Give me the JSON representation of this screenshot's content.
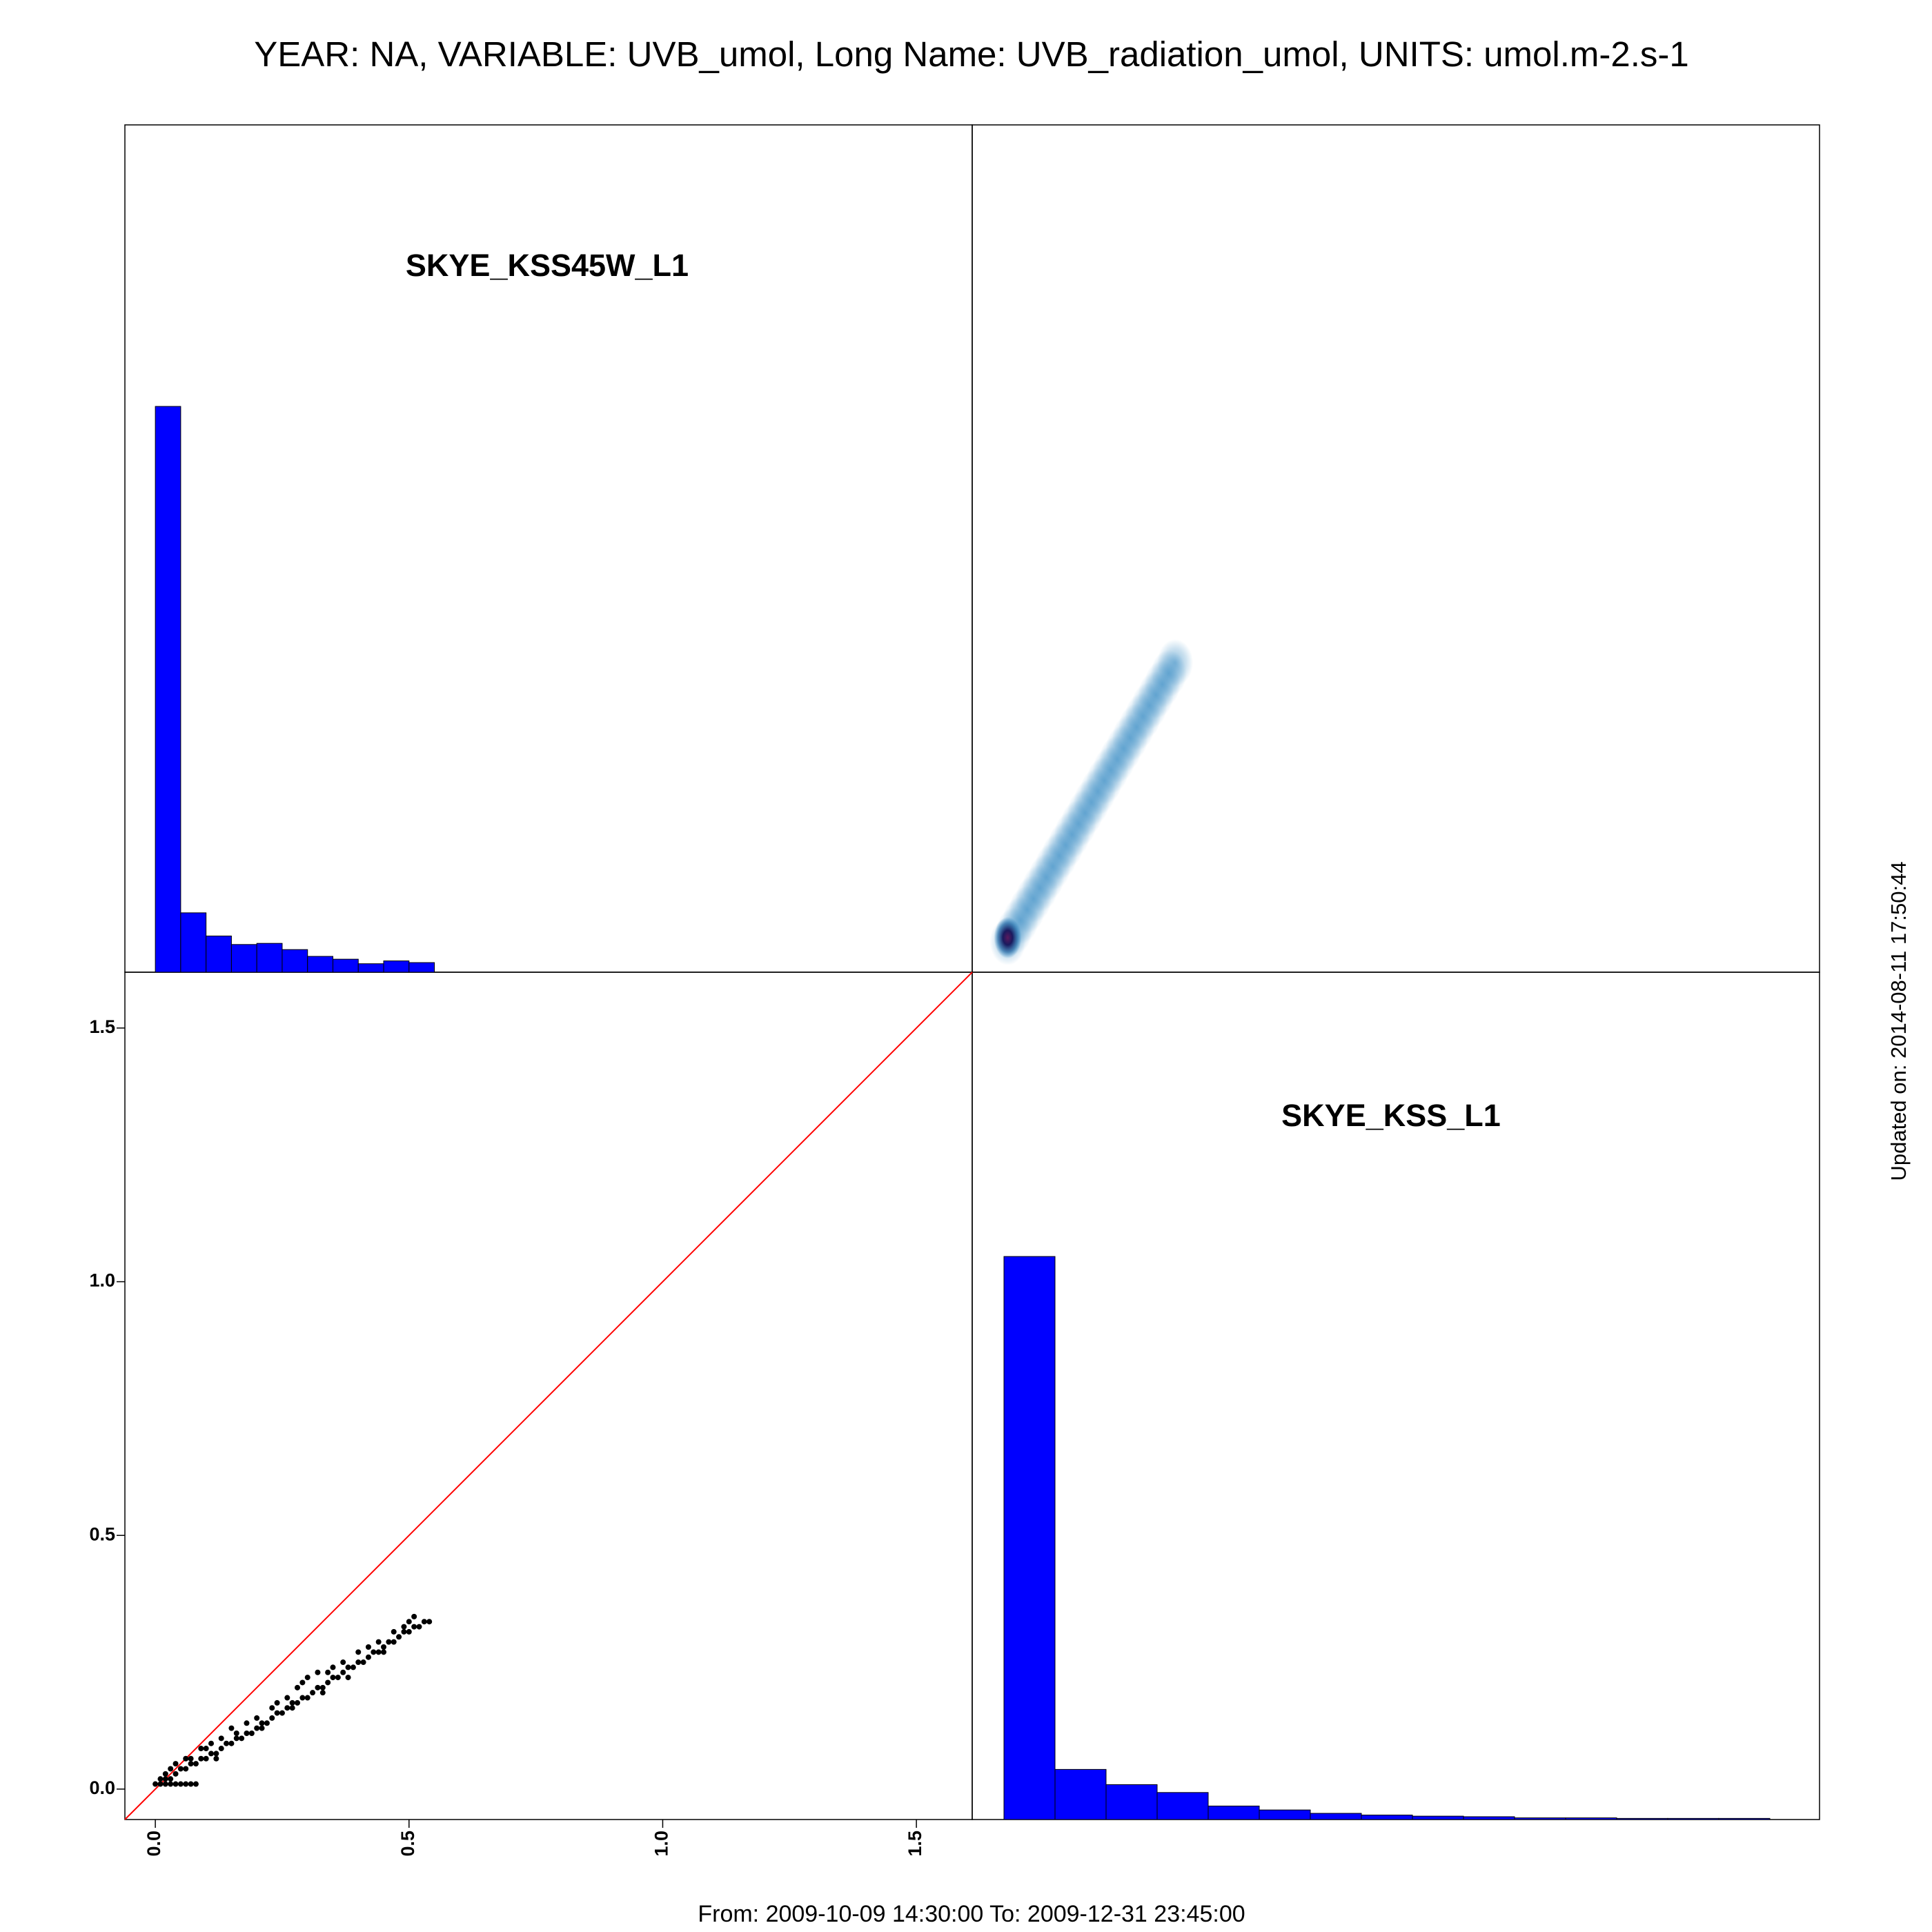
{
  "title": "YEAR: NA, VARIABLE: UVB_umol, Long Name: UVB_radiation_umol, UNITS: umol.m-2.s-1",
  "footer": "From: 2009-10-09 14:30:00 To: 2009-12-31 23:45:00",
  "updated": "Updated on: 2014-08-11 17:50:44",
  "colors": {
    "histogram_fill": "#0000ff",
    "points": "#000000",
    "identity_line": "#ff0000",
    "density_high": "#1a1a5e",
    "density_mid": "#2e86c1"
  },
  "chart_data": [
    {
      "type": "bar",
      "panel": "top-left",
      "label": "SKYE_KSS45W_L1",
      "bin_edges": [
        0.0,
        0.05,
        0.1,
        0.15,
        0.2,
        0.25,
        0.3,
        0.35,
        0.4,
        0.45,
        0.5,
        0.55
      ],
      "values": [
        1.0,
        0.105,
        0.064,
        0.049,
        0.051,
        0.04,
        0.028,
        0.023,
        0.015,
        0.02,
        0.017
      ]
    },
    {
      "type": "heatmap",
      "panel": "top-right",
      "description_of_content": "density",
      "x_range": [
        0.0,
        0.55
      ],
      "y_range": [
        0.0,
        0.34
      ],
      "peak": [
        0.0,
        0.01
      ]
    },
    {
      "type": "scatter",
      "panel": "bottom-left",
      "xlim": [
        -0.06,
        1.61
      ],
      "ylim": [
        -0.06,
        1.61
      ],
      "x_ticks": [
        "0.0",
        "0.5",
        "1.0",
        "1.5"
      ],
      "y_ticks": [
        "0.0",
        "0.5",
        "1.0",
        "1.5"
      ],
      "reference_line": "y = x",
      "points": [
        [
          0.0,
          0.01
        ],
        [
          0.01,
          0.01
        ],
        [
          0.02,
          0.01
        ],
        [
          0.03,
          0.01
        ],
        [
          0.04,
          0.01
        ],
        [
          0.05,
          0.01
        ],
        [
          0.06,
          0.01
        ],
        [
          0.07,
          0.01
        ],
        [
          0.08,
          0.01
        ],
        [
          0.01,
          0.02
        ],
        [
          0.02,
          0.03
        ],
        [
          0.03,
          0.02
        ],
        [
          0.04,
          0.03
        ],
        [
          0.05,
          0.04
        ],
        [
          0.06,
          0.04
        ],
        [
          0.07,
          0.05
        ],
        [
          0.08,
          0.05
        ],
        [
          0.09,
          0.06
        ],
        [
          0.1,
          0.06
        ],
        [
          0.11,
          0.07
        ],
        [
          0.12,
          0.07
        ],
        [
          0.13,
          0.08
        ],
        [
          0.14,
          0.09
        ],
        [
          0.15,
          0.09
        ],
        [
          0.16,
          0.1
        ],
        [
          0.17,
          0.1
        ],
        [
          0.18,
          0.11
        ],
        [
          0.19,
          0.11
        ],
        [
          0.2,
          0.12
        ],
        [
          0.21,
          0.13
        ],
        [
          0.22,
          0.13
        ],
        [
          0.23,
          0.14
        ],
        [
          0.24,
          0.15
        ],
        [
          0.25,
          0.15
        ],
        [
          0.26,
          0.16
        ],
        [
          0.27,
          0.17
        ],
        [
          0.28,
          0.17
        ],
        [
          0.29,
          0.18
        ],
        [
          0.3,
          0.18
        ],
        [
          0.31,
          0.19
        ],
        [
          0.32,
          0.2
        ],
        [
          0.33,
          0.2
        ],
        [
          0.34,
          0.21
        ],
        [
          0.35,
          0.22
        ],
        [
          0.36,
          0.22
        ],
        [
          0.37,
          0.23
        ],
        [
          0.38,
          0.24
        ],
        [
          0.39,
          0.24
        ],
        [
          0.4,
          0.25
        ],
        [
          0.41,
          0.25
        ],
        [
          0.42,
          0.26
        ],
        [
          0.43,
          0.27
        ],
        [
          0.44,
          0.27
        ],
        [
          0.45,
          0.28
        ],
        [
          0.46,
          0.29
        ],
        [
          0.47,
          0.29
        ],
        [
          0.48,
          0.3
        ],
        [
          0.49,
          0.31
        ],
        [
          0.5,
          0.31
        ],
        [
          0.51,
          0.32
        ],
        [
          0.52,
          0.32
        ],
        [
          0.53,
          0.33
        ],
        [
          0.54,
          0.33
        ],
        [
          0.02,
          0.02
        ],
        [
          0.04,
          0.05
        ],
        [
          0.06,
          0.06
        ],
        [
          0.09,
          0.08
        ],
        [
          0.11,
          0.09
        ],
        [
          0.13,
          0.1
        ],
        [
          0.15,
          0.12
        ],
        [
          0.18,
          0.13
        ],
        [
          0.2,
          0.14
        ],
        [
          0.23,
          0.16
        ],
        [
          0.26,
          0.18
        ],
        [
          0.28,
          0.2
        ],
        [
          0.3,
          0.22
        ],
        [
          0.32,
          0.23
        ],
        [
          0.35,
          0.24
        ],
        [
          0.37,
          0.25
        ],
        [
          0.4,
          0.27
        ],
        [
          0.44,
          0.29
        ],
        [
          0.47,
          0.31
        ],
        [
          0.49,
          0.32
        ],
        [
          0.51,
          0.34
        ],
        [
          0.12,
          0.06
        ],
        [
          0.21,
          0.12
        ],
        [
          0.27,
          0.16
        ],
        [
          0.33,
          0.19
        ],
        [
          0.38,
          0.22
        ],
        [
          0.45,
          0.27
        ],
        [
          0.03,
          0.04
        ],
        [
          0.07,
          0.06
        ],
        [
          0.1,
          0.08
        ],
        [
          0.16,
          0.11
        ],
        [
          0.24,
          0.17
        ],
        [
          0.29,
          0.21
        ],
        [
          0.34,
          0.23
        ],
        [
          0.42,
          0.28
        ],
        [
          0.5,
          0.33
        ]
      ]
    },
    {
      "type": "bar",
      "panel": "bottom-right",
      "label": "SKYE_KSS_L1",
      "bin_edges": [
        0.0,
        0.02,
        0.04,
        0.06,
        0.08,
        0.1,
        0.12,
        0.14,
        0.16,
        0.18,
        0.2,
        0.22,
        0.24,
        0.26,
        0.28,
        0.3
      ],
      "values": [
        1.0,
        0.089,
        0.062,
        0.048,
        0.024,
        0.017,
        0.011,
        0.008,
        0.006,
        0.005,
        0.003,
        0.003,
        0.002,
        0.002,
        0.002
      ]
    }
  ]
}
